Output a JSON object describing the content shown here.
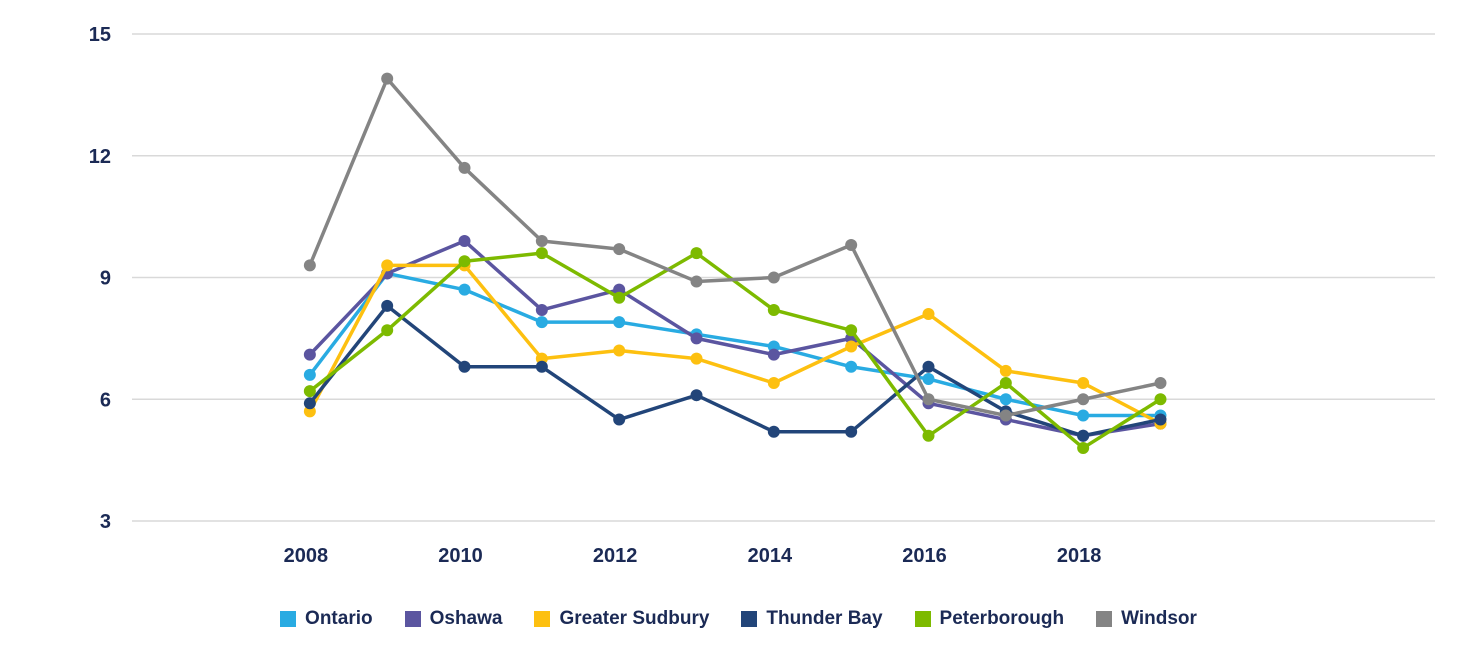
{
  "chart_data": {
    "type": "line",
    "title": "",
    "xlabel": "",
    "ylabel": "",
    "ylim": [
      3,
      15
    ],
    "yticks": [
      3,
      6,
      9,
      12,
      15
    ],
    "grid": true,
    "legend_position": "bottom",
    "x": [
      2008,
      2009,
      2010,
      2011,
      2012,
      2013,
      2014,
      2015,
      2016,
      2017,
      2018,
      2019
    ],
    "xtick_labels": [
      "2008",
      "2010",
      "2012",
      "2014",
      "2016",
      "2018"
    ],
    "xlim": [
      2005.7,
      2022.55
    ],
    "series": [
      {
        "name": "Ontario",
        "color": "#29abe2",
        "values": [
          6.6,
          9.1,
          8.7,
          7.9,
          7.9,
          7.6,
          7.3,
          6.8,
          6.5,
          6.0,
          5.6,
          5.6
        ]
      },
      {
        "name": "Oshawa",
        "color": "#5b55a0",
        "values": [
          7.1,
          9.1,
          9.9,
          8.2,
          8.7,
          7.5,
          7.1,
          7.5,
          5.9,
          5.5,
          5.1,
          5.4
        ]
      },
      {
        "name": "Greater Sudbury",
        "color": "#fdc010",
        "values": [
          5.7,
          9.3,
          9.3,
          7.0,
          7.2,
          7.0,
          6.4,
          7.3,
          8.1,
          6.7,
          6.4,
          5.4
        ]
      },
      {
        "name": "Thunder Bay",
        "color": "#224579",
        "values": [
          5.9,
          8.3,
          6.8,
          6.8,
          5.5,
          6.1,
          5.2,
          5.2,
          6.8,
          5.7,
          5.1,
          5.5
        ]
      },
      {
        "name": "Peterborough",
        "color": "#7dba00",
        "values": [
          6.2,
          7.7,
          9.4,
          9.6,
          8.5,
          9.6,
          8.2,
          7.7,
          5.1,
          6.4,
          4.8,
          6.0
        ]
      },
      {
        "name": "Windsor",
        "color": "#848484",
        "values": [
          9.3,
          13.9,
          11.7,
          9.9,
          9.7,
          8.9,
          9.0,
          9.8,
          6.0,
          5.6,
          6.0,
          6.4
        ]
      }
    ]
  }
}
